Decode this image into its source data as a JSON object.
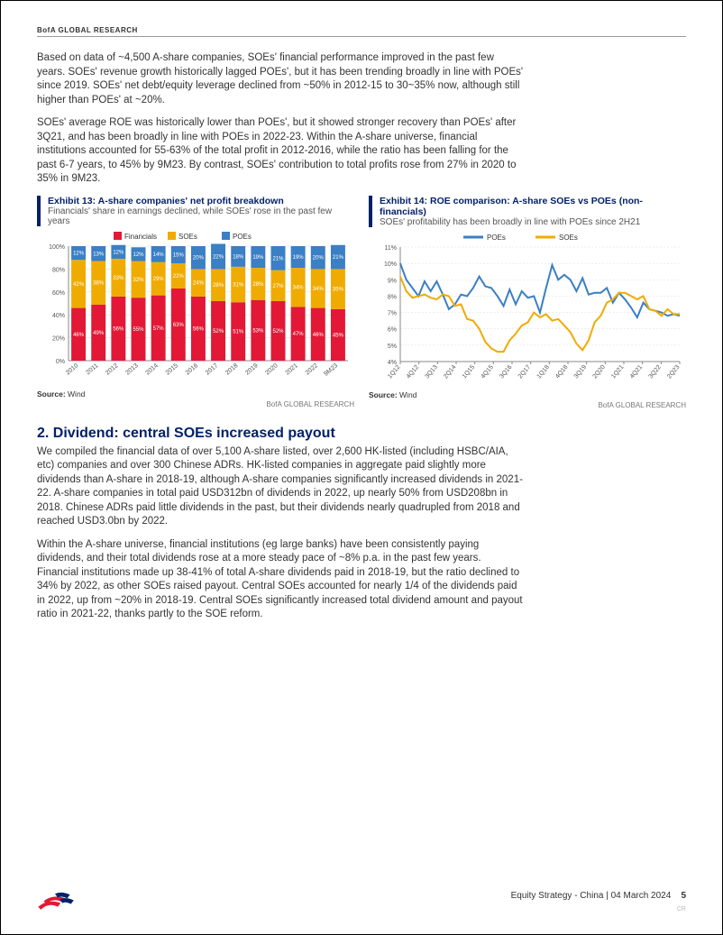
{
  "header": "BofA GLOBAL RESEARCH",
  "p1": "Based on data of ~4,500 A-share companies, SOEs' financial performance improved in the past few years. SOEs' revenue growth historically lagged POEs', but it has been trending broadly in line with POEs' since 2019. SOEs' net debt/equity leverage declined from ~50% in 2012-15 to 30~35% now, although still higher than POEs' at ~20%.",
  "p2": "SOEs' average ROE was historically lower than POEs', but it showed stronger recovery than POEs' after 3Q21, and has been broadly in line with POEs in 2022-23. Within the A-share universe, financial institutions accounted for 55-63% of the total profit in 2012-2016, while the ratio has been falling for the past 6-7 years, to 45% by 9M23. By contrast, SOEs' contribution to total profits rose from 27% in 2020 to 35% in 9M23.",
  "ex13": {
    "title": "Exhibit 13: A-share companies' net profit breakdown",
    "subtitle": "Financials' share in earnings declined, while SOEs' rose in the past few years",
    "source_label": "Source:",
    "source_value": "Wind",
    "attrib": "BofA GLOBAL RESEARCH",
    "type": "stacked-bar",
    "legend": [
      "Financials",
      "SOEs",
      "POEs"
    ],
    "series_colors": {
      "Financials": "#e21836",
      "SOEs": "#f0ab00",
      "POEs": "#3b7fc4"
    },
    "categories": [
      "2010",
      "2011",
      "2012",
      "2013",
      "2014",
      "2015",
      "2016",
      "2017",
      "2018",
      "2019",
      "2020",
      "2021",
      "2022",
      "9M23"
    ],
    "financials": [
      46,
      49,
      56,
      55,
      57,
      63,
      56,
      52,
      51,
      53,
      52,
      47,
      46,
      45
    ],
    "soes": [
      42,
      38,
      33,
      32,
      29,
      22,
      24,
      28,
      31,
      28,
      27,
      34,
      34,
      35
    ],
    "poes": [
      12,
      13,
      12,
      12,
      14,
      15,
      20,
      22,
      18,
      19,
      21,
      19,
      20,
      21
    ],
    "ylim": [
      0,
      100
    ],
    "ytick_step": 20,
    "axis_color": "#888",
    "grid_color": "#dcdcdc",
    "label_fontsize": 7,
    "datalabel_fontsize": 6,
    "bar_width": 0.72,
    "background_color": "#ffffff"
  },
  "ex14": {
    "title": "Exhibit 14: ROE comparison: A-share SOEs vs POEs (non-financials)",
    "subtitle": "SOEs' profitability has been broadly in line with POEs since 2H21",
    "source_label": "Source:",
    "source_value": "Wind",
    "attrib": "BofA GLOBAL RESEARCH",
    "type": "line",
    "legend": [
      "POEs",
      "SOEs"
    ],
    "series_colors": {
      "POEs": "#3b7fc4",
      "SOEs": "#f0ab00"
    },
    "ylim": [
      4,
      11
    ],
    "ytick_step": 1,
    "x_labels": [
      "1Q12",
      "4Q12",
      "3Q13",
      "2Q14",
      "1Q15",
      "4Q15",
      "3Q16",
      "2Q17",
      "1Q18",
      "4Q18",
      "3Q19",
      "2Q20",
      "1Q21",
      "4Q21",
      "3Q22",
      "2Q23"
    ],
    "poes": [
      10.0,
      9.0,
      8.5,
      8.0,
      8.9,
      8.3,
      8.9,
      8.1,
      7.2,
      7.5,
      8.1,
      8.0,
      8.5,
      9.2,
      8.6,
      8.5,
      8.0,
      7.4,
      8.4,
      7.5,
      8.3,
      7.9,
      8.0,
      7.0,
      8.5,
      9.9,
      9.0,
      9.3,
      9.0,
      8.3,
      9.1,
      8.1,
      8.2,
      8.2,
      8.5,
      7.6,
      8.2,
      7.8,
      7.3,
      6.7,
      7.6,
      7.2,
      7.1,
      7.0,
      6.8,
      6.9,
      6.8
    ],
    "soes": [
      9.2,
      8.3,
      7.9,
      8.0,
      8.1,
      7.9,
      7.8,
      8.1,
      8.0,
      7.4,
      7.5,
      6.6,
      6.5,
      6.0,
      5.2,
      4.8,
      4.6,
      4.6,
      5.3,
      5.7,
      6.2,
      6.4,
      7.0,
      6.7,
      6.9,
      6.5,
      6.6,
      6.2,
      5.8,
      5.1,
      4.7,
      5.3,
      6.4,
      6.8,
      7.6,
      7.8,
      8.2,
      8.2,
      8.0,
      7.8,
      8.0,
      7.2,
      7.1,
      6.8,
      7.2,
      6.9,
      6.9
    ],
    "axis_color": "#888",
    "grid_color": "#dcdcdc",
    "label_fontsize": 7,
    "line_width": 2,
    "background_color": "#ffffff"
  },
  "section2_title": "2.  Dividend: central SOEs increased payout",
  "p3": "We compiled the financial data of over 5,100 A-share listed, over 2,600 HK-listed (including HSBC/AIA, etc) companies and over 300 Chinese ADRs. HK-listed companies in aggregate paid slightly more dividends than A-share in 2018-19, although A-share companies significantly increased dividends in 2021-22. A-share companies in total paid USD312bn of dividends in 2022, up nearly 50% from USD208bn in 2018. Chinese ADRs paid little dividends in the past, but their dividends nearly quadrupled from 2018 and reached USD3.0bn by 2022.",
  "p4": "Within the A-share universe, financial institutions (eg large banks) have been consistently paying dividends, and their total dividends rose at a more steady pace of ~8% p.a. in the past few years. Financial institutions made up 38-41% of total A-share dividends paid in 2018-19, but the ratio declined to 34% by 2022, as other SOEs raised payout. Central SOEs accounted for nearly 1/4 of the dividends paid in 2022, up from ~20% in 2018-19. Central SOEs significantly increased total dividend amount and payout ratio in 2021-22, thanks partly to the SOE reform.",
  "footer": {
    "text": "Equity Strategy - China | 04 March 2024",
    "page": "5",
    "cr": "CR"
  }
}
